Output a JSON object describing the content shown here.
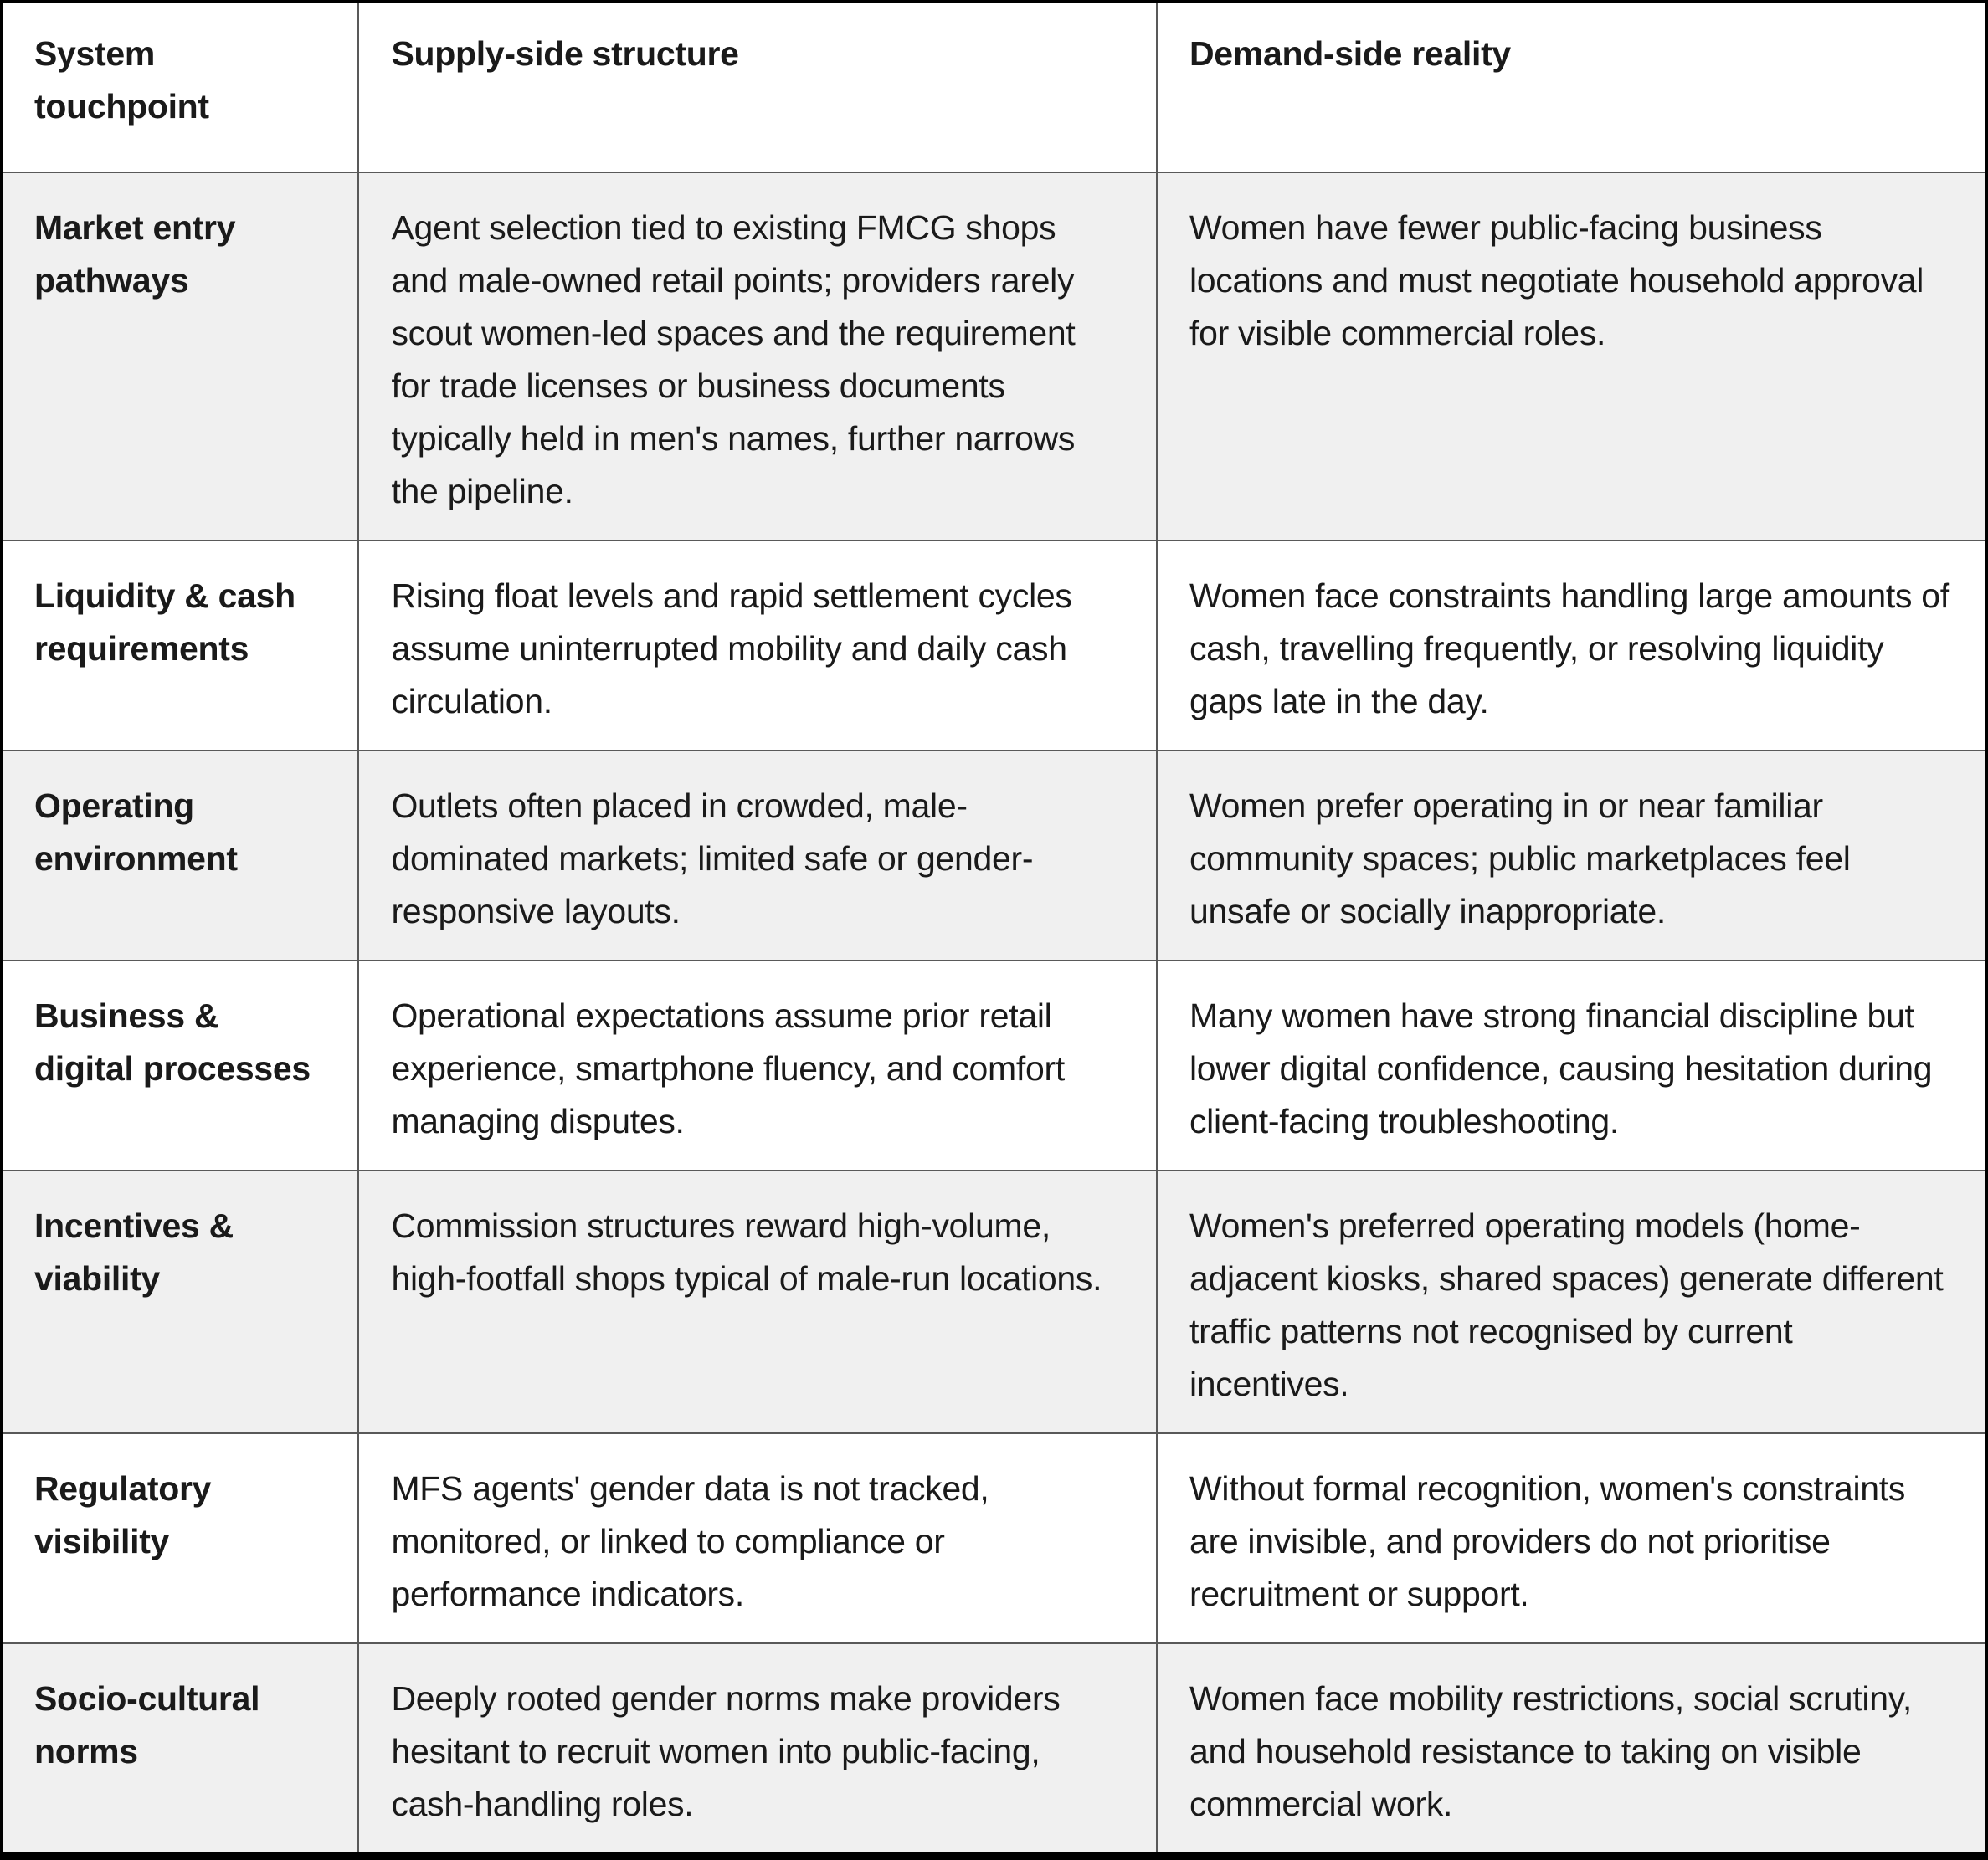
{
  "table": {
    "columns": [
      "System touchpoint",
      "Supply-side structure",
      "Demand-side reality"
    ],
    "rows": [
      {
        "touchpoint": "Market entry pathways",
        "supply": "Agent selection tied to existing FMCG shops and male-owned retail points; providers rarely scout women-led spaces and the requirement for trade licenses or business documents typically held in men's names, further narrows the pipeline.",
        "demand": "Women have fewer public-facing business locations and must negotiate household approval for visible commercial roles."
      },
      {
        "touchpoint": "Liquidity & cash requirements",
        "supply": "Rising float levels and rapid settlement cycles assume uninterrupted mobility and daily cash circulation.",
        "demand": "Women face constraints handling large amounts of cash, travelling frequently, or resolving liquidity gaps late in the day."
      },
      {
        "touchpoint": "Operating environment",
        "supply": "Outlets often placed in crowded, male-dominated markets; limited safe or gender-responsive layouts.",
        "demand": "Women prefer operating in or near familiar community spaces; public marketplaces feel unsafe or socially inappropriate."
      },
      {
        "touchpoint": "Business & digital processes",
        "supply": "Operational expectations assume prior retail experience, smartphone fluency, and comfort managing disputes.",
        "demand": "Many women have strong financial discipline but lower digital confidence, causing hesitation during client-facing troubleshooting."
      },
      {
        "touchpoint": "Incentives & viability",
        "supply": "Commission structures reward high-volume, high-footfall shops typical of male-run locations.",
        "demand": "Women's preferred operating models (home-adjacent kiosks, shared spaces) generate different traffic patterns not recognised by current incentives."
      },
      {
        "touchpoint": "Regulatory visibility",
        "supply": "MFS agents' gender data is not tracked, monitored, or linked to compliance or performance indicators.",
        "demand": "Without formal recognition, women's constraints are invisible, and providers do not prioritise recruitment or support."
      },
      {
        "touchpoint": "Socio-cultural norms",
        "supply": "Deeply rooted gender norms make providers hesitant to recruit women into public-facing, cash-handling roles.",
        "demand": "Women face mobility restrictions, social scrutiny, and household resistance to taking on visible commercial work."
      }
    ]
  },
  "colors": {
    "stripe_background": "#f0f0f0",
    "inner_border": "#595959",
    "outer_border": "#000000",
    "text": "#1a1a1a"
  }
}
